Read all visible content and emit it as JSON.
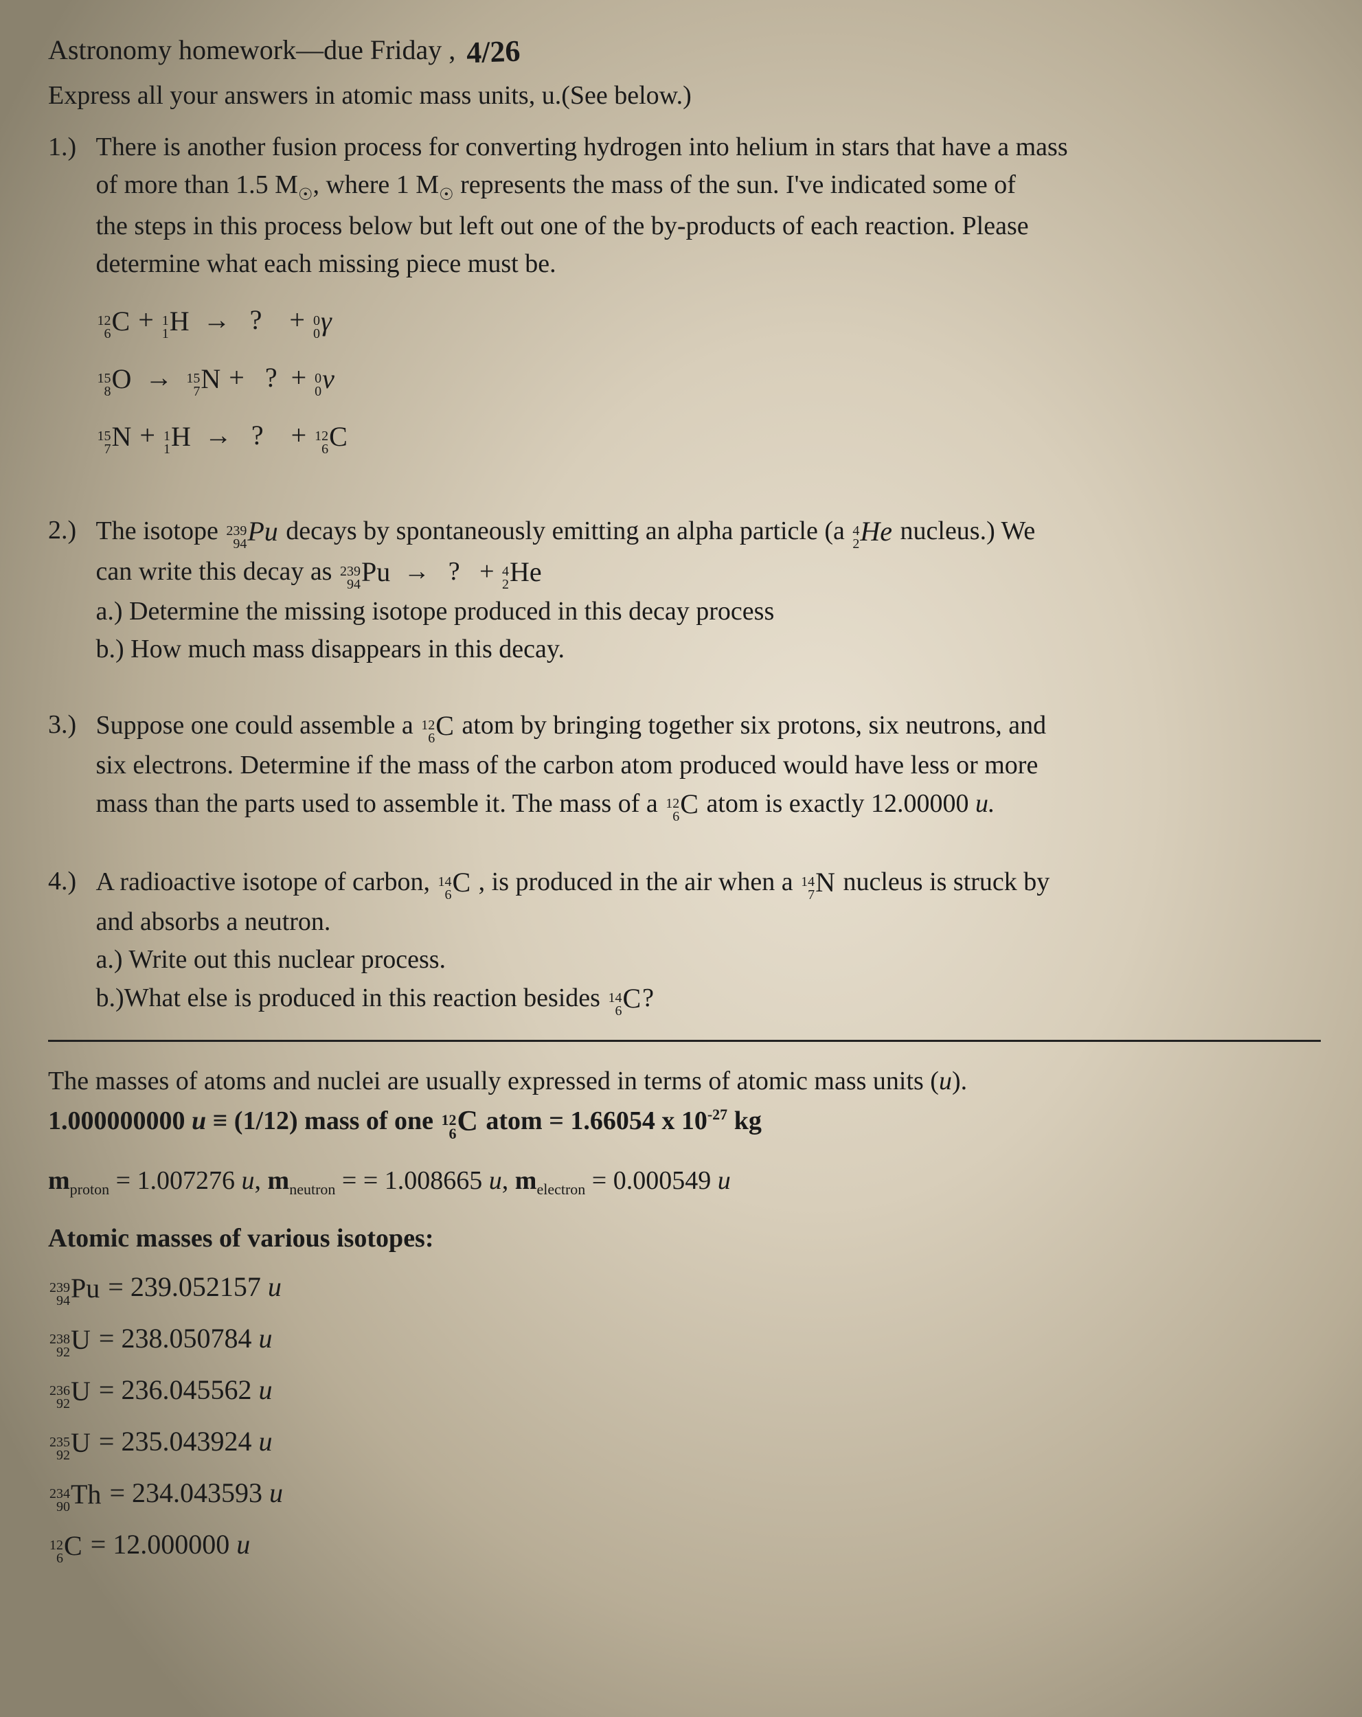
{
  "header": {
    "title_prefix": "Astronomy homework—due Friday ,",
    "due_date_handwritten": "4/26",
    "instruction": "Express all your answers in atomic mass units, u.(See below.)"
  },
  "q1": {
    "num": "1.)",
    "text_l1": "There is another fusion process for converting hydrogen into helium in stars that have a mass",
    "text_l2": "of more than 1.5 M",
    "text_l2b": ", where 1 M",
    "text_l2c": " represents the mass of the sun.  I've indicated some of",
    "text_l3": "the steps in this process below but left out one of the by-products of each reaction.  Please",
    "text_l4": "determine what each missing piece must be.",
    "sun_symbol": "☉",
    "eq1": {
      "lhs1": {
        "a": "12",
        "z": "6",
        "sym": "C"
      },
      "plus1": "+",
      "lhs2": {
        "a": "1",
        "z": "1",
        "sym": "H"
      },
      "arrow": "→",
      "q": "?",
      "plus2": "+",
      "rhs": {
        "a": "0",
        "z": "0",
        "sym": "γ"
      }
    },
    "eq2": {
      "lhs1": {
        "a": "15",
        "z": "8",
        "sym": "O"
      },
      "arrow": "→",
      "rhs1": {
        "a": "15",
        "z": "7",
        "sym": "N"
      },
      "plus1": "+",
      "q": "?",
      "plus2": "+",
      "rhs2": {
        "a": "0",
        "z": "0",
        "sym": "ν"
      }
    },
    "eq3": {
      "lhs1": {
        "a": "15",
        "z": "7",
        "sym": "N"
      },
      "plus1": "+",
      "lhs2": {
        "a": "1",
        "z": "1",
        "sym": "H"
      },
      "arrow": "→",
      "q": "?",
      "plus2": "+",
      "rhs": {
        "a": "12",
        "z": "6",
        "sym": "C"
      }
    }
  },
  "q2": {
    "num": "2.)",
    "text_l1a": "The isotope ",
    "pu": {
      "a": "239",
      "z": "94",
      "sym": "Pu"
    },
    "text_l1b": " decays by spontaneously emitting an alpha particle (a ",
    "he4": {
      "a": "4",
      "z": "2",
      "sym": "He"
    },
    "text_l1c": " nucleus.)  We",
    "text_l2a": "can write this decay as ",
    "decay_arrow": "→",
    "decay_q": "?",
    "decay_plus": "+",
    "text_a": "a.) Determine the missing isotope produced in this decay process",
    "text_b": "b.) How much mass disappears in this decay."
  },
  "q3": {
    "num": "3.)",
    "text_l1a": "Suppose one could assemble a ",
    "c12": {
      "a": "12",
      "z": "6",
      "sym": "C"
    },
    "text_l1b": " atom by bringing together six protons, six neutrons, and",
    "text_l2": "six electrons.  Determine if the mass of the carbon atom produced would have less or more",
    "text_l3a": "mass than the parts used to assemble it.  The mass of a ",
    "text_l3b": "  atom is exactly 12.00000 ",
    "u": "u."
  },
  "q4": {
    "num": "4.)",
    "text_l1a": "A radioactive isotope of carbon, ",
    "c14": {
      "a": "14",
      "z": "6",
      "sym": "C"
    },
    "text_l1b": ", is produced in the air when a ",
    "n14": {
      "a": "14",
      "z": "7",
      "sym": "N"
    },
    "text_l1c": " nucleus is struck by",
    "text_l2": "and absorbs a neutron.",
    "text_a": "a.) Write out this nuclear process.",
    "text_b1": "b.)What else is produced in this reaction besides ",
    "text_b2": "?"
  },
  "ref": {
    "line1a": "The masses of atoms and nuclei are usually expressed in terms of atomic mass units (",
    "line1b": ").",
    "u_it": "u",
    "def_a": "1.000000000 ",
    "def_b": " ≡ (1/12) mass of one ",
    "c12": {
      "a": "12",
      "z": "6",
      "sym": "C"
    },
    "def_c": " atom = 1.66054 x 10",
    "def_exp": "-27",
    "def_d": " kg",
    "m_proton_lbl": "m",
    "proton_sub": "proton",
    "m_proton_val": " = 1.007276 ",
    "m_neutron_lbl": "m",
    "neutron_sub": "neutron",
    "m_neutron_val": " = = 1.008665 ",
    "m_electron_lbl": "m",
    "electron_sub": "electron",
    "m_electron_val": " = 0.000549 ",
    "comma": ",   ",
    "iso_header": "Atomic masses of various isotopes:",
    "isotopes": [
      {
        "a": "239",
        "z": "94",
        "sym": "Pu",
        "mass": "239.052157"
      },
      {
        "a": "238",
        "z": "92",
        "sym": "U",
        "mass": "238.050784"
      },
      {
        "a": "236",
        "z": "92",
        "sym": "U",
        "mass": "236.045562"
      },
      {
        "a": "235",
        "z": "92",
        "sym": "U",
        "mass": "235.043924"
      },
      {
        "a": "234",
        "z": "90",
        "sym": "Th",
        "mass": "234.043593"
      },
      {
        "a": "12",
        "z": "6",
        "sym": "C",
        "mass": "12.000000"
      }
    ],
    "eq": " = ",
    "u": "u"
  }
}
